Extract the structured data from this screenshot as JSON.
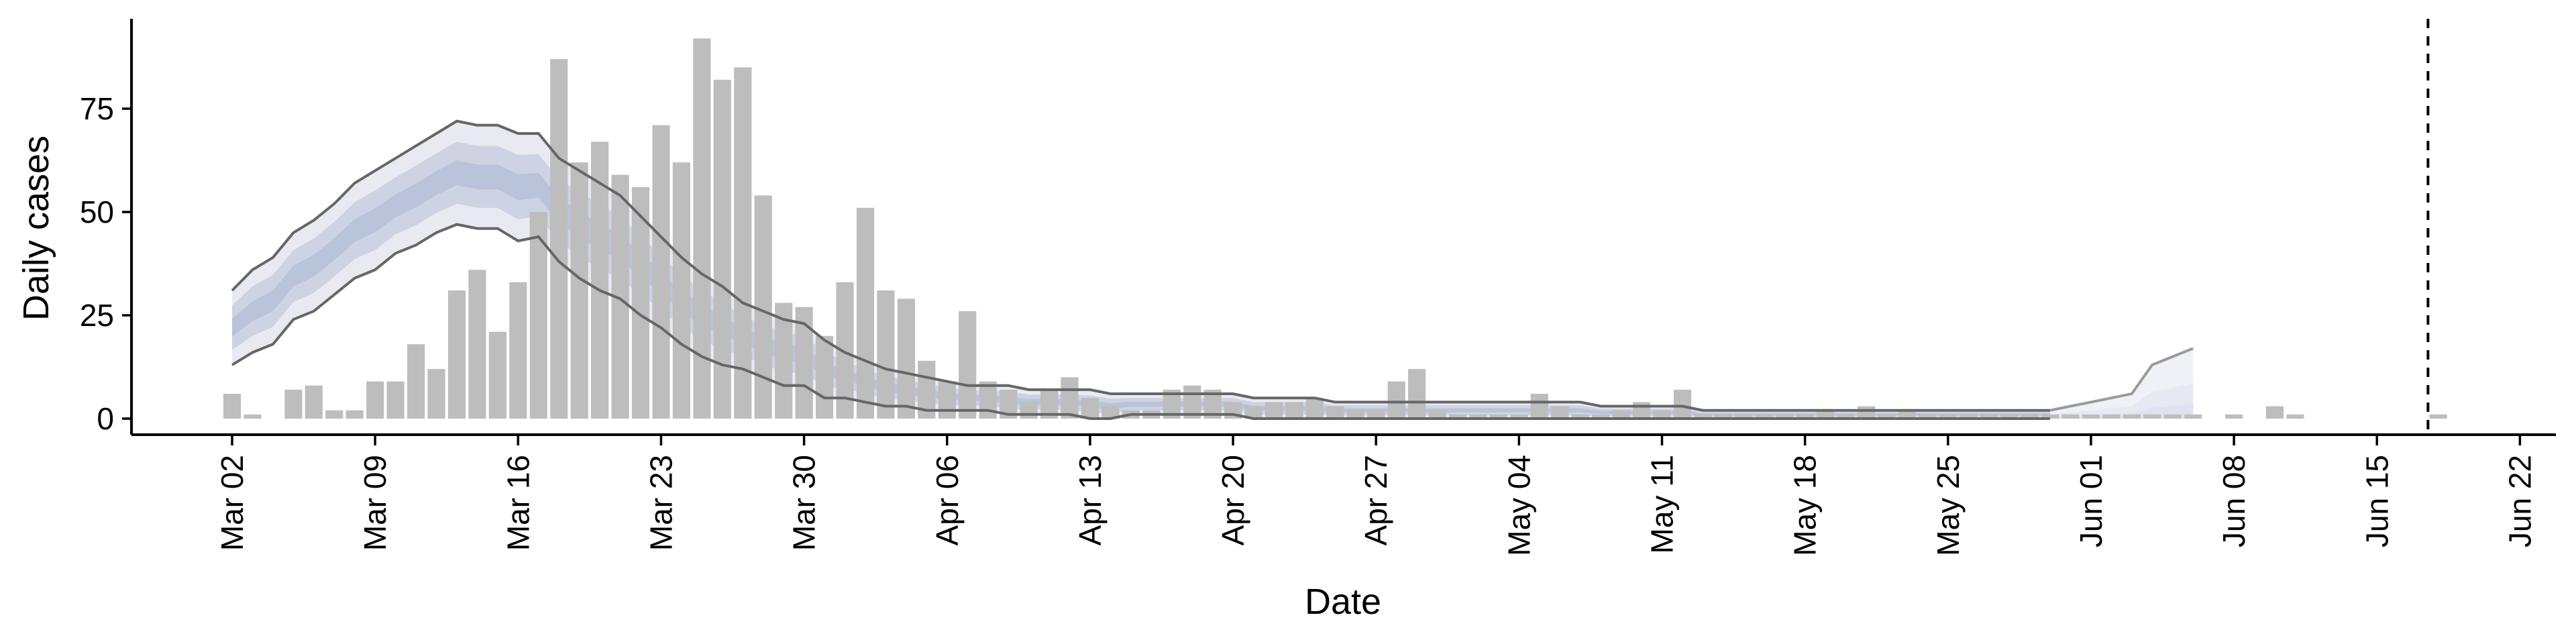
{
  "chart_data": {
    "type": "bar",
    "title": "",
    "xlabel": "Date",
    "ylabel": "Daily cases",
    "ylim": [
      0,
      96
    ],
    "yticks": [
      "0",
      "25",
      "50",
      "75"
    ],
    "x_start": "Mar 02",
    "xlim_days": [
      -1.6,
      111.5
    ],
    "xtick_labels": [
      "Mar 02",
      "Mar 09",
      "Mar 16",
      "Mar 23",
      "Mar 30",
      "Apr 06",
      "Apr 13",
      "Apr 20",
      "Apr 27",
      "May 04",
      "May 11",
      "May 18",
      "May 25",
      "Jun 01",
      "Jun 08",
      "Jun 15",
      "Jun 22"
    ],
    "xtick_days": [
      0,
      7,
      14,
      21,
      28,
      35,
      42,
      49,
      56,
      63,
      70,
      77,
      84,
      91,
      98,
      105,
      112
    ],
    "daily_cases": [
      6,
      1,
      0,
      7,
      8,
      2,
      2,
      9,
      9,
      18,
      12,
      31,
      36,
      21,
      33,
      50,
      87,
      62,
      67,
      59,
      56,
      71,
      62,
      92,
      82,
      85,
      54,
      28,
      27,
      20,
      33,
      51,
      31,
      29,
      14,
      9,
      26,
      9,
      7,
      4,
      7,
      10,
      5,
      3,
      2,
      2,
      7,
      8,
      7,
      4,
      3,
      4,
      4,
      5,
      3,
      2,
      2,
      9,
      12,
      2,
      1,
      1,
      1,
      1,
      6,
      3,
      1,
      1,
      2,
      4,
      2,
      7,
      1,
      1,
      1,
      1,
      1,
      1,
      2,
      1,
      3,
      1,
      2,
      1,
      1,
      1,
      1,
      1,
      1,
      1,
      1,
      1,
      1,
      1,
      1,
      1,
      1,
      0,
      1,
      0,
      3,
      1,
      0,
      0,
      0,
      0,
      0,
      0,
      1
    ],
    "estimate_days": [
      0,
      1,
      2,
      3,
      4,
      5,
      6,
      7,
      8,
      9,
      10,
      11,
      12,
      13,
      14,
      15,
      16,
      17,
      18,
      19,
      20,
      21,
      22,
      23,
      24,
      25,
      26,
      27,
      28,
      29,
      30,
      31,
      32,
      33,
      34,
      35,
      36,
      37,
      38,
      39,
      40,
      41,
      42,
      43,
      44,
      45,
      46,
      47,
      48,
      49,
      50,
      51,
      52,
      53,
      54,
      55,
      56,
      57,
      58,
      59,
      60,
      61,
      62,
      63,
      64,
      65,
      66,
      67,
      68,
      69,
      70,
      71,
      72,
      73,
      74,
      75,
      76,
      77,
      78,
      79,
      80,
      81,
      82,
      83,
      84,
      85,
      86,
      87,
      88,
      89
    ],
    "estimate_upper": [
      31,
      36,
      39,
      45,
      48,
      52,
      57,
      60,
      63,
      66,
      69,
      72,
      71,
      71,
      69,
      69,
      63,
      60,
      57,
      54,
      49,
      44,
      39,
      35,
      32,
      28,
      26,
      24,
      23,
      19,
      16,
      14,
      12,
      11,
      10,
      9,
      8,
      8,
      8,
      7,
      7,
      7,
      7,
      6,
      6,
      6,
      6,
      6,
      6,
      6,
      5,
      5,
      5,
      5,
      4,
      4,
      4,
      4,
      4,
      4,
      4,
      4,
      4,
      4,
      4,
      4,
      4,
      3,
      3,
      3,
      3,
      3,
      2,
      2,
      2,
      2,
      2,
      2,
      2,
      2,
      2,
      2,
      2,
      2,
      2,
      2,
      2,
      2,
      2,
      2
    ],
    "estimate_lower": [
      13,
      16,
      18,
      24,
      26,
      30,
      34,
      36,
      40,
      42,
      45,
      47,
      46,
      46,
      43,
      44,
      38,
      34,
      31,
      29,
      25,
      22,
      18,
      15,
      13,
      12,
      10,
      8,
      8,
      5,
      5,
      4,
      3,
      3,
      2,
      2,
      2,
      2,
      1,
      1,
      1,
      1,
      0,
      0,
      1,
      1,
      1,
      1,
      1,
      1,
      0,
      0,
      0,
      0,
      0,
      0,
      0,
      0,
      0,
      0,
      0,
      0,
      0,
      0,
      0,
      0,
      0,
      0,
      0,
      0,
      0,
      0,
      0,
      0,
      0,
      0,
      0,
      0,
      0,
      0,
      0,
      0,
      0,
      0,
      0,
      0,
      0,
      0,
      0,
      0
    ],
    "forecast_days": [
      89,
      90,
      91,
      92,
      93,
      94,
      95
    ],
    "forecast_upper": [
      2,
      3,
      4,
      5,
      6,
      8,
      10
    ],
    "forecast_upper_2": [
      13,
      15
    ],
    "forecast_end_values": [
      14,
      17,
      17
    ],
    "forecast_lower": [
      0,
      0,
      0,
      0,
      0,
      0,
      0
    ],
    "vline_day": 107.5,
    "colors": {
      "bars": "#bdbdbd",
      "band_outer": "#e9eaf1",
      "band_mid": "#cdd3e3",
      "band_inner": "#b9c3d9",
      "ci_line": "#666666",
      "forecast_line": "#9a9a9a"
    }
  }
}
